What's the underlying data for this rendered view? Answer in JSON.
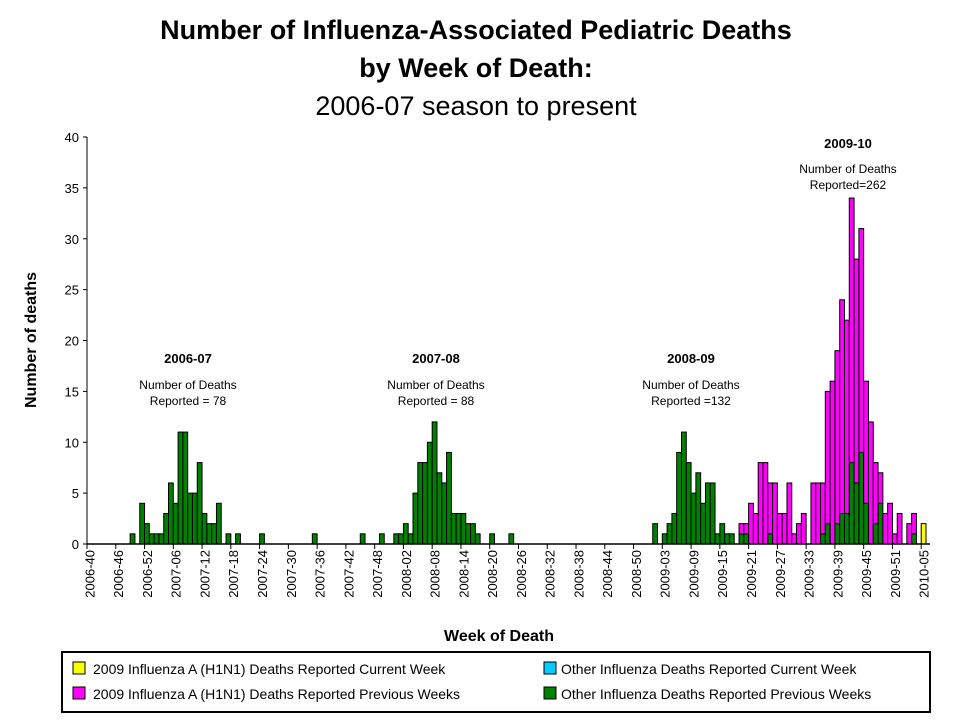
{
  "chart_data": {
    "type": "bar",
    "stacked": true,
    "title": "Number of Influenza-Associated Pediatric Deaths",
    "title_line2": "by Week of Death:",
    "subtitle": "2006-07 season to present",
    "xlabel": "Week of Death",
    "ylabel": "Number of deaths",
    "ylim": [
      0,
      40
    ],
    "yticks": [
      0,
      5,
      10,
      15,
      20,
      25,
      30,
      35,
      40
    ],
    "grid": false,
    "x_range": [
      "2006-40",
      "2010-05"
    ],
    "tick_labels": [
      "2006-40",
      "2006-46",
      "2006-52",
      "2007-06",
      "2007-12",
      "2007-18",
      "2007-24",
      "2007-30",
      "2007-36",
      "2007-42",
      "2007-48",
      "2008-02",
      "2008-08",
      "2008-14",
      "2008-20",
      "2008-26",
      "2008-32",
      "2008-38",
      "2008-44",
      "2008-50",
      "2009-03",
      "2009-09",
      "2009-15",
      "2009-21",
      "2009-27",
      "2009-33",
      "2009-39",
      "2009-45",
      "2009-51",
      "2010-05"
    ],
    "legend_position": "bottom",
    "series": [
      {
        "name": "Other Influenza  Deaths Reported Previous Weeks",
        "color": "#008000",
        "values": {
          "2006-49": 1,
          "2006-51": 4,
          "2006-52": 2,
          "2007-01": 1,
          "2007-02": 1,
          "2007-03": 1,
          "2007-04": 3,
          "2007-05": 6,
          "2007-06": 4,
          "2007-07": 11,
          "2007-08": 11,
          "2007-09": 5,
          "2007-10": 5,
          "2007-11": 8,
          "2007-12": 3,
          "2007-13": 2,
          "2007-14": 2,
          "2007-15": 4,
          "2007-17": 1,
          "2007-19": 1,
          "2007-24": 1,
          "2007-35": 1,
          "2007-45": 1,
          "2007-49": 1,
          "2007-52": 1,
          "2008-01": 1,
          "2008-02": 2,
          "2008-03": 1,
          "2008-04": 5,
          "2008-05": 8,
          "2008-06": 8,
          "2008-07": 10,
          "2008-08": 12,
          "2008-09": 7,
          "2008-10": 6,
          "2008-11": 9,
          "2008-12": 3,
          "2008-13": 3,
          "2008-14": 3,
          "2008-15": 2,
          "2008-16": 2,
          "2008-17": 1,
          "2008-20": 1,
          "2008-24": 1,
          "2009-01": 2,
          "2009-03": 1,
          "2009-04": 2,
          "2009-05": 3,
          "2009-06": 9,
          "2009-07": 11,
          "2009-08": 8,
          "2009-09": 5,
          "2009-10": 7,
          "2009-11": 4,
          "2009-12": 6,
          "2009-13": 6,
          "2009-14": 1,
          "2009-15": 2,
          "2009-16": 1,
          "2009-17": 1,
          "2009-19": 1,
          "2009-20": 1,
          "2009-25": 1,
          "2009-36": 1,
          "2009-37": 2,
          "2009-39": 2,
          "2009-40": 3,
          "2009-41": 3,
          "2009-42": 8,
          "2009-43": 6,
          "2009-44": 9,
          "2009-45": 4,
          "2009-47": 2,
          "2009-48": 4,
          "2010-03": 1
        }
      },
      {
        "name": "2009 Influenza  A (H1N1) Deaths Reported Previous Weeks",
        "color": "#FF00FF",
        "values": {
          "2009-19": 1,
          "2009-20": 1,
          "2009-21": 4,
          "2009-22": 3,
          "2009-23": 8,
          "2009-24": 8,
          "2009-25": 5,
          "2009-26": 6,
          "2009-27": 3,
          "2009-28": 3,
          "2009-29": 6,
          "2009-30": 1,
          "2009-31": 2,
          "2009-32": 3,
          "2009-34": 6,
          "2009-35": 6,
          "2009-36": 5,
          "2009-37": 13,
          "2009-38": 16,
          "2009-39": 17,
          "2009-40": 21,
          "2009-41": 19,
          "2009-42": 26,
          "2009-43": 22,
          "2009-44": 22,
          "2009-45": 12,
          "2009-46": 12,
          "2009-47": 6,
          "2009-48": 3,
          "2009-49": 3,
          "2009-50": 4,
          "2009-51": 1,
          "2009-52": 3,
          "2010-02": 2,
          "2010-03": 2
        }
      },
      {
        "name": "2009 Influenza  A (H1N1) Deaths Reported Current Week",
        "color": "#FFFF00",
        "values": {
          "2010-05": 2
        }
      },
      {
        "name": "Other Influenza  Deaths Reported Current Week",
        "color": "#00CCFF",
        "values": {}
      }
    ],
    "annotations": [
      {
        "season": "2006-07",
        "line1": "Number of Deaths",
        "line2": "Reported = 78"
      },
      {
        "season": "2007-08",
        "line1": "Number of Deaths",
        "line2": "Reported = 88"
      },
      {
        "season": "2008-09",
        "line1": "Number of Deaths",
        "line2": "Reported =132"
      },
      {
        "season": "2009-10",
        "line1": "Number of Deaths",
        "line2": "Reported=262"
      }
    ]
  }
}
